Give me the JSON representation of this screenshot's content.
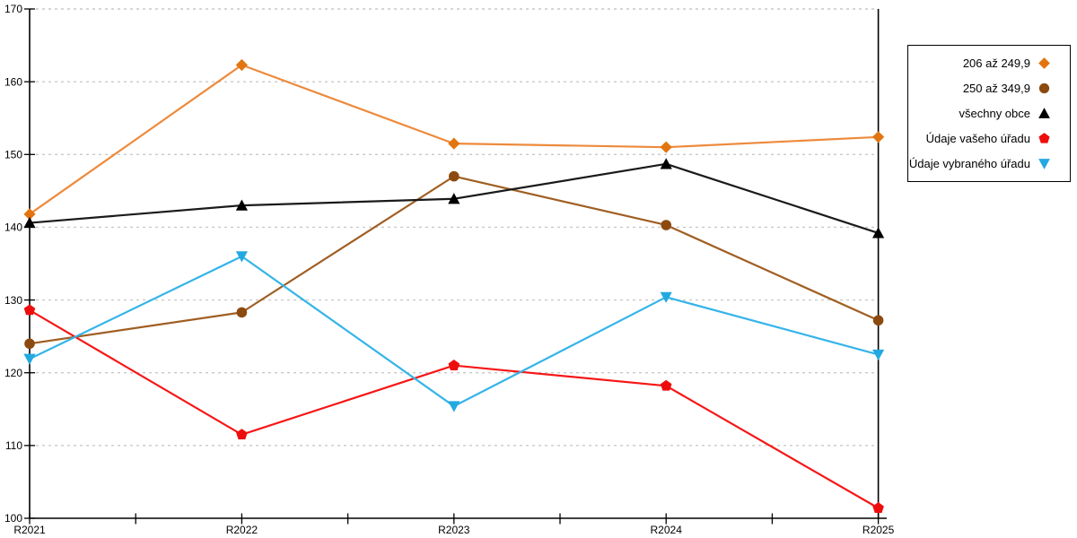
{
  "chart_data": {
    "type": "line",
    "title": "",
    "xlabel": "",
    "ylabel": "",
    "categories": [
      "R2021",
      "R2022",
      "R2023",
      "R2024",
      "R2025"
    ],
    "series": [
      {
        "name": "206 až 249,9",
        "marker": "diamond",
        "line_color": "#ED8A3C",
        "marker_color": "#E2750F",
        "values": [
          141.8,
          162.3,
          151.5,
          151.0,
          152.4
        ]
      },
      {
        "name": "250 až 349,9",
        "marker": "circle",
        "line_color": "#A05E22",
        "marker_color": "#8C4A10",
        "values": [
          124.0,
          128.3,
          147.0,
          140.3,
          127.2
        ]
      },
      {
        "name": "všechny obce",
        "marker": "triangle-up",
        "line_color": "#1A1A1A",
        "marker_color": "#000000",
        "values": [
          140.6,
          143.0,
          143.9,
          148.7,
          139.2
        ]
      },
      {
        "name": "Údaje vašeho úřadu",
        "marker": "pentagon",
        "line_color": "#F61717",
        "marker_color": "#EE0D0D",
        "values": [
          128.6,
          111.5,
          121.0,
          118.2,
          101.4
        ]
      },
      {
        "name": "Údaje vybraného úřadu",
        "marker": "triangle-down",
        "line_color": "#35B4E9",
        "marker_color": "#23A9E1",
        "values": [
          121.9,
          136.0,
          115.4,
          130.4,
          122.5
        ]
      }
    ],
    "ylim": [
      100,
      170
    ],
    "ytick_step": 10,
    "y_tick_labels": [
      "100",
      "110",
      "120",
      "130",
      "140",
      "150",
      "160",
      "170"
    ],
    "grid": "horizontal-dashed",
    "legend_position": "right-top",
    "highlight_x": "R2025"
  },
  "colors": {
    "grid": "#C9C9C9",
    "axis": "#000000",
    "highlight_line": "#000000",
    "background": "#FFFFFF",
    "legend_border": "#000000"
  }
}
